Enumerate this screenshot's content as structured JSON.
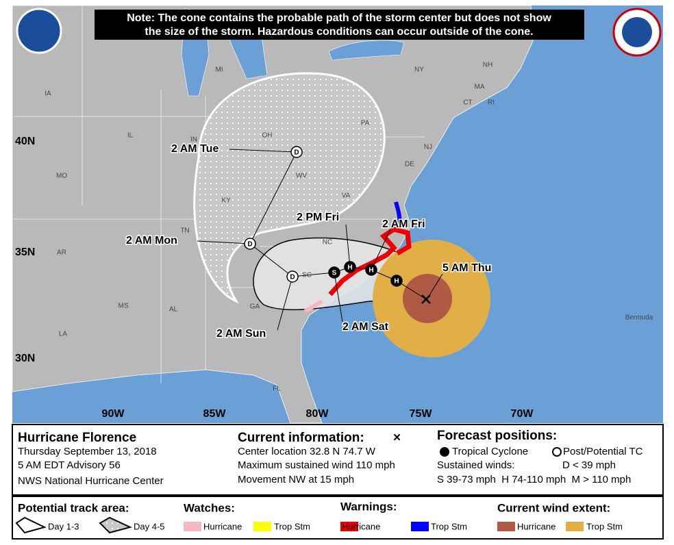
{
  "note": [
    "Note: The cone contains the probable path of the storm center but does not show",
    "the size of the storm. Hazardous conditions can occur outside of the cone."
  ],
  "map": {
    "state_labels": [
      "MI",
      "NY",
      "NH",
      "IA",
      "MA",
      "CT",
      "RI",
      "PA",
      "IL",
      "IN",
      "OH",
      "NJ",
      "MO",
      "WV",
      "DE",
      "KY",
      "VA",
      "TN",
      "NC",
      "AR",
      "SC",
      "MS",
      "AL",
      "GA",
      "LA",
      "FL"
    ],
    "island_label": "Bermuda",
    "latitude_labels": [
      "40N",
      "35N",
      "30N"
    ],
    "longitude_labels": [
      "90W",
      "85W",
      "80W",
      "75W",
      "70W"
    ],
    "track_labels": [
      "2 AM Tue",
      "2 AM Mon",
      "2 PM Fri",
      "2 AM Fri",
      "5 AM Thu",
      "2 AM Sat",
      "2 AM Sun"
    ],
    "markers": [
      "D",
      "D",
      "D",
      "S",
      "H",
      "H",
      "H"
    ]
  },
  "info": {
    "storm": "Hurricane Florence",
    "date": "Thursday September 13, 2018",
    "advisory": "5 AM EDT Advisory 56",
    "center": "NWS National Hurricane Center"
  },
  "current": {
    "title": "Current information:",
    "symbol": "×",
    "lines": [
      "Center location 32.8 N 74.7 W",
      "Maximum sustained wind 110 mph",
      "Movement NW at 15 mph"
    ]
  },
  "forecast": {
    "title": "Forecast positions:",
    "tropical": "Tropical Cyclone",
    "post": "Post/Potential TC",
    "winds": "Sustained winds:",
    "d": "D < 39 mph",
    "scale": "S 39-73 mph  H 74-110 mph  M > 110 mph"
  },
  "legend": {
    "track": "Potential track area:",
    "day13": "Day 1-3",
    "day45": "Day 4-5",
    "watches": "Watches:",
    "warnings": "Warnings:",
    "wind": "Current wind extent:",
    "hurricane": "Hurricane",
    "tropstm": "Trop Stm"
  }
}
